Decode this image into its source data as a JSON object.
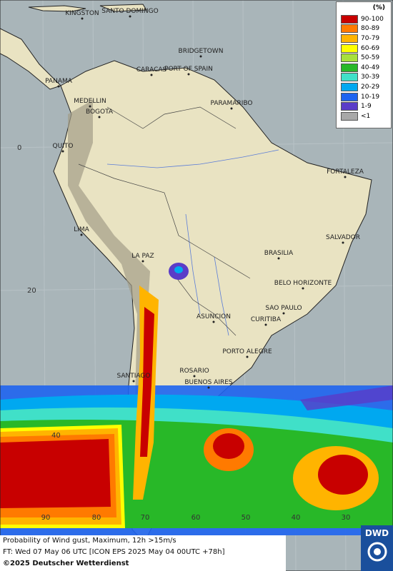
{
  "map": {
    "cities": [
      "KINGSTON",
      "SANTO DOMINGO",
      "BRIDGETOWN",
      "CARACAS",
      "PORT OF SPAIN",
      "PANAMA",
      "MEDELLIN",
      "BOGOTA",
      "PARAMARIBO",
      "QUITO",
      "FORTALEZA",
      "LIMA",
      "SALVADOR",
      "BRASILIA",
      "LA PAZ",
      "BELO HORIZONTE",
      "SAO PAULO",
      "ASUNCION",
      "CURITIBA",
      "PORTO ALEGRE",
      "ROSARIO",
      "SANTIAGO",
      "BUENOS AIRES"
    ],
    "latitude_labels": [
      "0",
      "20",
      "40"
    ],
    "longitude_labels": [
      "90",
      "80",
      "70",
      "60",
      "50",
      "40",
      "30"
    ]
  },
  "legend": {
    "title": "(%)",
    "entries": [
      {
        "label": "90-100",
        "color": "#c80000"
      },
      {
        "label": "80-89",
        "color": "#ff7a00"
      },
      {
        "label": "70-79",
        "color": "#ffb400"
      },
      {
        "label": "60-69",
        "color": "#ffff00"
      },
      {
        "label": "50-59",
        "color": "#a8e03c"
      },
      {
        "label": "40-49",
        "color": "#28b828"
      },
      {
        "label": "30-39",
        "color": "#40e0c8"
      },
      {
        "label": "20-29",
        "color": "#00a8f0"
      },
      {
        "label": "10-19",
        "color": "#1e64f0"
      },
      {
        "label": "1-9",
        "color": "#5a3cc8"
      },
      {
        "label": "<1",
        "color": "#a8a8a8"
      }
    ]
  },
  "footer": {
    "product": "Probability of Wind gust, Maximum, 12h >15m/s",
    "forecast_time": "FT: Wed 07 May 06 UTC [ICON EPS 2025 May 04 00UTC +78h]",
    "copyright": "©2025 Deutscher Wetterdienst"
  },
  "logo": {
    "text": "DWD"
  }
}
